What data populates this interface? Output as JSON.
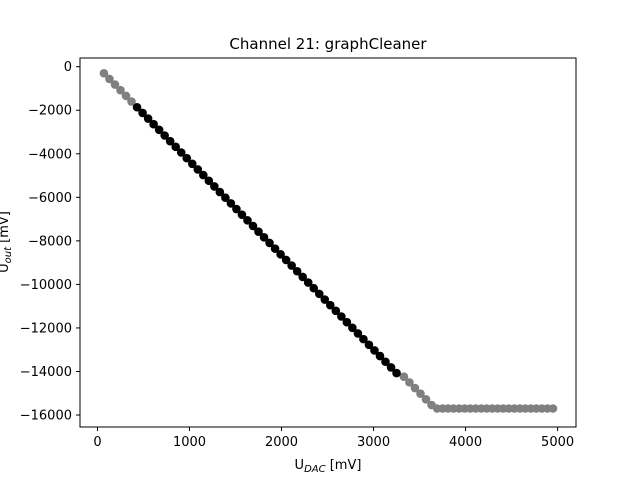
{
  "chart_data": {
    "type": "scatter",
    "title": "Channel 21: graphCleaner",
    "xlabel": {
      "main": "U",
      "sub": "DAC",
      "unit": " [mV]"
    },
    "ylabel": {
      "main": "U",
      "sub": "out",
      "unit": " [mV]"
    },
    "xlim": [
      -190,
      5200
    ],
    "ylim": [
      -16550,
      400
    ],
    "xticks": [
      0,
      1000,
      2000,
      3000,
      4000,
      5000
    ],
    "yticks": [
      0,
      -2000,
      -4000,
      -6000,
      -8000,
      -10000,
      -12000,
      -14000,
      -16000
    ],
    "xtick_labels": [
      "0",
      "1000",
      "2000",
      "3000",
      "4000",
      "5000"
    ],
    "ytick_labels": [
      "0",
      "−2000",
      "−4000",
      "−6000",
      "−8000",
      "−10000",
      "−12000",
      "−14000",
      "−16000"
    ],
    "grid": false,
    "legend": "none",
    "series": [
      {
        "color": "#808080",
        "x": [
          70,
          130,
          190,
          250,
          310,
          370,
          3330,
          3390,
          3450,
          3510,
          3570,
          3630,
          3690,
          3750,
          3810,
          3870,
          3930,
          3990,
          4050,
          4110,
          4170,
          4230,
          4290,
          4350,
          4410,
          4470,
          4530,
          4590,
          4650,
          4710,
          4770,
          4830,
          4890,
          4950
        ],
        "y": [
          -300,
          -560,
          -820,
          -1080,
          -1340,
          -1600,
          -14240,
          -14500,
          -14760,
          -15020,
          -15280,
          -15540,
          -15700,
          -15700,
          -15700,
          -15700,
          -15700,
          -15700,
          -15700,
          -15700,
          -15700,
          -15700,
          -15700,
          -15700,
          -15700,
          -15700,
          -15700,
          -15700,
          -15700,
          -15700,
          -15700,
          -15700,
          -15700,
          -15700
        ]
      },
      {
        "color": "#000000",
        "x_start": 430,
        "x_step": 60,
        "x_end": 3250,
        "slope_mv_per_mv": -4.33,
        "intercept_mv": 0
      }
    ]
  }
}
